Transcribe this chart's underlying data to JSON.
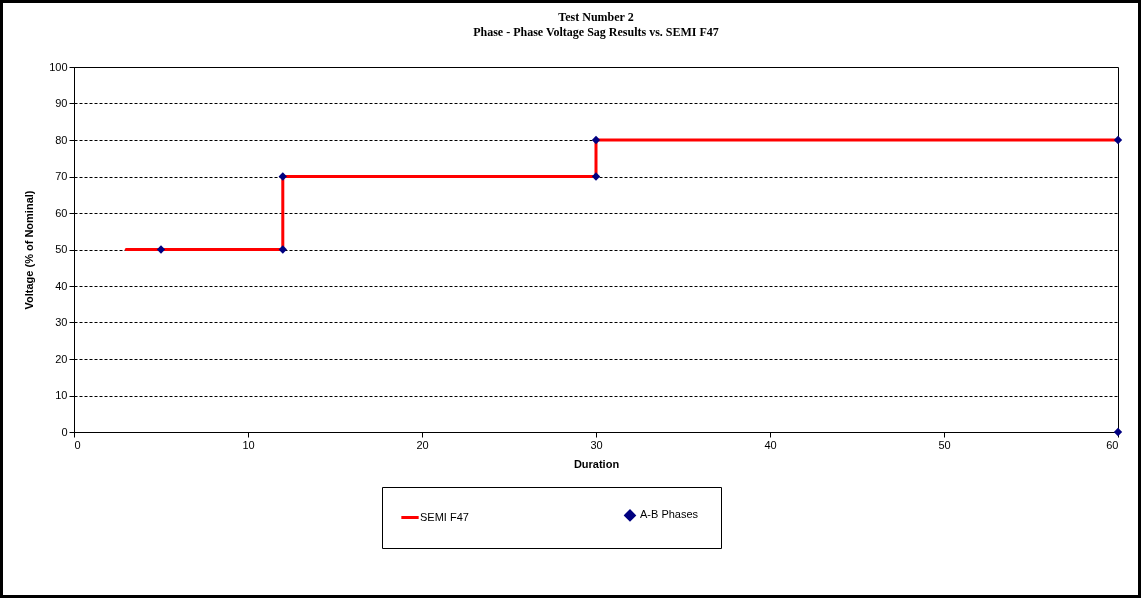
{
  "chart_data": {
    "type": "line",
    "title": "Test Number 2",
    "subtitle": "Phase - Phase Voltage Sag Results vs. SEMI F47",
    "xlabel": "Duration",
    "ylabel": "Voltage (% of Nominal)",
    "xlim": [
      0,
      60
    ],
    "xticks": [
      0,
      10,
      20,
      30,
      40,
      50,
      60
    ],
    "ylim": [
      0,
      100
    ],
    "yticks": [
      0,
      10,
      20,
      30,
      40,
      50,
      60,
      70,
      80,
      90,
      100
    ],
    "grid": "y",
    "legend": "bottom",
    "series": [
      {
        "name": "SEMI F47",
        "type": "line",
        "color": "#ff0000",
        "x": [
          3,
          12,
          12,
          30,
          30,
          60
        ],
        "values": [
          50,
          50,
          70,
          70,
          80,
          80
        ]
      },
      {
        "name": "A-B Phases",
        "type": "scatter",
        "marker": "diamond",
        "color": "#000080",
        "x": [
          5,
          12,
          12,
          30,
          30,
          60,
          60
        ],
        "values": [
          50,
          50,
          70,
          70,
          80,
          80,
          0
        ]
      }
    ]
  }
}
